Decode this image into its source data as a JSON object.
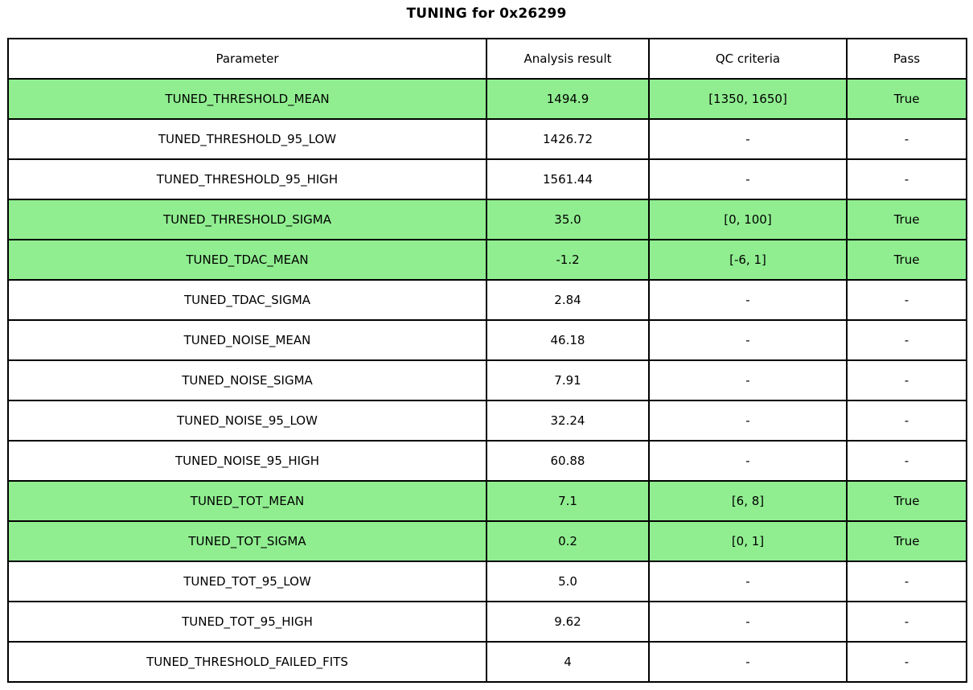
{
  "title": "TUNING for 0x26299",
  "colors": {
    "highlight_green": "#90EE90",
    "border": "#000000",
    "background": "#FFFFFF"
  },
  "table": {
    "headers": [
      "Parameter",
      "Analysis result",
      "QC criteria",
      "Pass"
    ],
    "rows": [
      {
        "parameter": "TUNED_THRESHOLD_MEAN",
        "analysis_result": "1494.9",
        "qc_criteria": "[1350, 1650]",
        "pass": "True",
        "highlight": true
      },
      {
        "parameter": "TUNED_THRESHOLD_95_LOW",
        "analysis_result": "1426.72",
        "qc_criteria": "-",
        "pass": "-",
        "highlight": false
      },
      {
        "parameter": "TUNED_THRESHOLD_95_HIGH",
        "analysis_result": "1561.44",
        "qc_criteria": "-",
        "pass": "-",
        "highlight": false
      },
      {
        "parameter": "TUNED_THRESHOLD_SIGMA",
        "analysis_result": "35.0",
        "qc_criteria": "[0, 100]",
        "pass": "True",
        "highlight": true
      },
      {
        "parameter": "TUNED_TDAC_MEAN",
        "analysis_result": "-1.2",
        "qc_criteria": "[-6, 1]",
        "pass": "True",
        "highlight": true
      },
      {
        "parameter": "TUNED_TDAC_SIGMA",
        "analysis_result": "2.84",
        "qc_criteria": "-",
        "pass": "-",
        "highlight": false
      },
      {
        "parameter": "TUNED_NOISE_MEAN",
        "analysis_result": "46.18",
        "qc_criteria": "-",
        "pass": "-",
        "highlight": false
      },
      {
        "parameter": "TUNED_NOISE_SIGMA",
        "analysis_result": "7.91",
        "qc_criteria": "-",
        "pass": "-",
        "highlight": false
      },
      {
        "parameter": "TUNED_NOISE_95_LOW",
        "analysis_result": "32.24",
        "qc_criteria": "-",
        "pass": "-",
        "highlight": false
      },
      {
        "parameter": "TUNED_NOISE_95_HIGH",
        "analysis_result": "60.88",
        "qc_criteria": "-",
        "pass": "-",
        "highlight": false
      },
      {
        "parameter": "TUNED_TOT_MEAN",
        "analysis_result": "7.1",
        "qc_criteria": "[6, 8]",
        "pass": "True",
        "highlight": true
      },
      {
        "parameter": "TUNED_TOT_SIGMA",
        "analysis_result": "0.2",
        "qc_criteria": "[0, 1]",
        "pass": "True",
        "highlight": true
      },
      {
        "parameter": "TUNED_TOT_95_LOW",
        "analysis_result": "5.0",
        "qc_criteria": "-",
        "pass": "-",
        "highlight": false
      },
      {
        "parameter": "TUNED_TOT_95_HIGH",
        "analysis_result": "9.62",
        "qc_criteria": "-",
        "pass": "-",
        "highlight": false
      },
      {
        "parameter": "TUNED_THRESHOLD_FAILED_FITS",
        "analysis_result": "4",
        "qc_criteria": "-",
        "pass": "-",
        "highlight": false
      }
    ]
  },
  "chart_data": {
    "type": "table",
    "title": "TUNING for 0x26299",
    "columns": [
      "Parameter",
      "Analysis result",
      "QC criteria",
      "Pass"
    ],
    "rows": [
      [
        "TUNED_THRESHOLD_MEAN",
        "1494.9",
        "[1350, 1650]",
        "True"
      ],
      [
        "TUNED_THRESHOLD_95_LOW",
        "1426.72",
        "-",
        "-"
      ],
      [
        "TUNED_THRESHOLD_95_HIGH",
        "1561.44",
        "-",
        "-"
      ],
      [
        "TUNED_THRESHOLD_SIGMA",
        "35.0",
        "[0, 100]",
        "True"
      ],
      [
        "TUNED_TDAC_MEAN",
        "-1.2",
        "[-6, 1]",
        "True"
      ],
      [
        "TUNED_TDAC_SIGMA",
        "2.84",
        "-",
        "-"
      ],
      [
        "TUNED_NOISE_MEAN",
        "46.18",
        "-",
        "-"
      ],
      [
        "TUNED_NOISE_SIGMA",
        "7.91",
        "-",
        "-"
      ],
      [
        "TUNED_NOISE_95_LOW",
        "32.24",
        "-",
        "-"
      ],
      [
        "TUNED_NOISE_95_HIGH",
        "60.88",
        "-",
        "-"
      ],
      [
        "TUNED_TOT_MEAN",
        "7.1",
        "[6, 8]",
        "True"
      ],
      [
        "TUNED_TOT_SIGMA",
        "0.2",
        "[0, 1]",
        "True"
      ],
      [
        "TUNED_TOT_95_LOW",
        "5.0",
        "-",
        "-"
      ],
      [
        "TUNED_TOT_95_HIGH",
        "9.62",
        "-",
        "-"
      ],
      [
        "TUNED_THRESHOLD_FAILED_FITS",
        "4",
        "-",
        "-"
      ]
    ],
    "highlighted_rows": [
      "TUNED_THRESHOLD_MEAN",
      "TUNED_THRESHOLD_SIGMA",
      "TUNED_TDAC_MEAN",
      "TUNED_TOT_MEAN",
      "TUNED_TOT_SIGMA"
    ],
    "highlight_color": "#90EE90",
    "layout": {
      "grid": true,
      "header_background": "#FFFFFF",
      "cell_text_align": "center"
    }
  }
}
